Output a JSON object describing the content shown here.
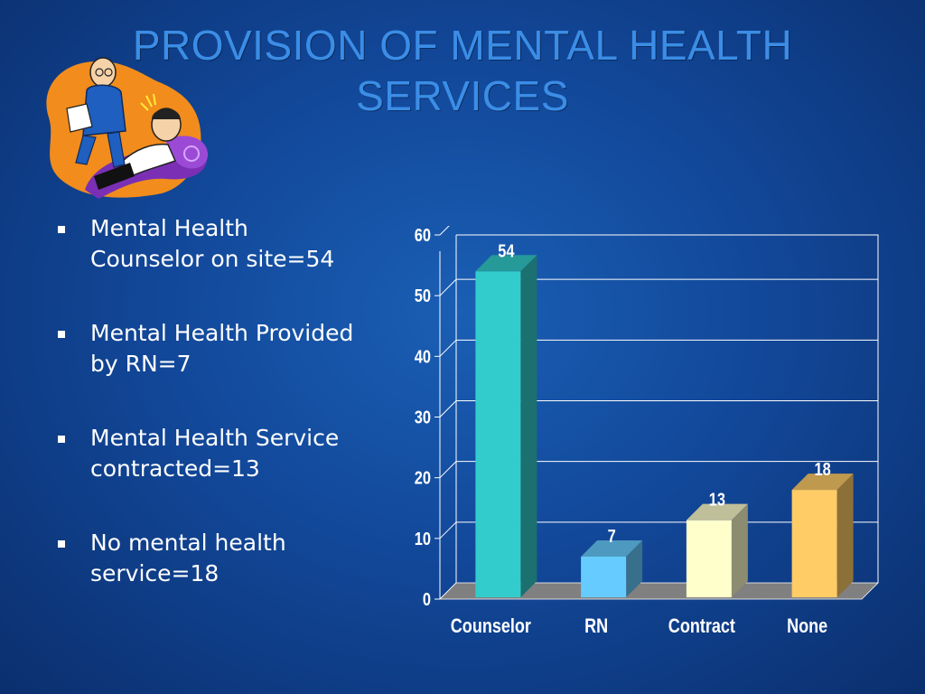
{
  "slide": {
    "title_line1": "PROVISION OF MENTAL HEALTH",
    "title_line2": "SERVICES",
    "bullets": [
      {
        "line1": "Mental Health",
        "line2": "Counselor on site=54"
      },
      {
        "line1": "Mental Health Provided",
        "line2": "by RN=7"
      },
      {
        "line1": "Mental Health Service",
        "line2": "contracted=13"
      },
      {
        "line1": "No mental health",
        "line2": "service=18"
      }
    ],
    "colors": {
      "title": "#3b8de6",
      "text": "#ffffff"
    },
    "icon": "therapist-and-patient-clipart"
  },
  "chart_data": {
    "type": "bar",
    "categories": [
      "Counselor",
      "RN",
      "Contract",
      "None"
    ],
    "values": [
      54,
      7,
      13,
      18
    ],
    "data_labels": [
      "54",
      "7",
      "13",
      "18"
    ],
    "ylim": [
      0,
      60
    ],
    "yticks": [
      0,
      10,
      20,
      30,
      40,
      50,
      60
    ],
    "grid": true,
    "legend": "none",
    "style": "3d",
    "colors": [
      "#33cccc",
      "#66ccff",
      "#ffffcc",
      "#ffcc66"
    ],
    "title": "",
    "xlabel": "",
    "ylabel": ""
  }
}
